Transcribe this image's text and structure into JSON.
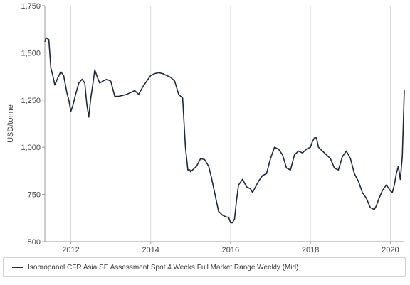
{
  "chart_data": {
    "type": "line",
    "ylabel": "USD/tonne",
    "xlabel": "",
    "ylim": [
      500,
      1750
    ],
    "xlim": [
      2011.35,
      2020.35
    ],
    "y_ticks": [
      500,
      750,
      1000,
      1250,
      1500,
      1750
    ],
    "y_tick_labels": [
      "500",
      "750",
      "1,000",
      "1,250",
      "1,500",
      "1,750"
    ],
    "x_ticks": [
      2012,
      2014,
      2016,
      2018,
      2020
    ],
    "x_tick_labels": [
      "2012",
      "2014",
      "2016",
      "2018",
      "2020"
    ],
    "grid": "vertical",
    "legend_position": "bottom",
    "series": [
      {
        "name": "Isopropanol CFR Asia SE Assessment Spot 4 Weeks Full Market Range Weekly (Mid)",
        "color": "#1c2a3a",
        "x": [
          2011.35,
          2011.38,
          2011.45,
          2011.5,
          2011.55,
          2011.6,
          2011.68,
          2011.75,
          2011.82,
          2011.9,
          2011.95,
          2012.0,
          2012.05,
          2012.12,
          2012.2,
          2012.28,
          2012.35,
          2012.4,
          2012.45,
          2012.5,
          2012.55,
          2012.6,
          2012.65,
          2012.72,
          2012.8,
          2012.9,
          2013.0,
          2013.1,
          2013.2,
          2013.3,
          2013.4,
          2013.5,
          2013.6,
          2013.7,
          2013.8,
          2013.9,
          2014.0,
          2014.1,
          2014.2,
          2014.3,
          2014.4,
          2014.5,
          2014.6,
          2014.7,
          2014.8,
          2014.87,
          2014.93,
          2014.98,
          2015.0,
          2015.05,
          2015.15,
          2015.25,
          2015.35,
          2015.45,
          2015.52,
          2015.6,
          2015.7,
          2015.8,
          2015.9,
          2015.95,
          2016.0,
          2016.05,
          2016.1,
          2016.15,
          2016.2,
          2016.3,
          2016.4,
          2016.5,
          2016.55,
          2016.6,
          2016.7,
          2016.8,
          2016.9,
          2017.0,
          2017.1,
          2017.2,
          2017.3,
          2017.4,
          2017.5,
          2017.6,
          2017.7,
          2017.8,
          2017.9,
          2018.0,
          2018.05,
          2018.1,
          2018.15,
          2018.2,
          2018.3,
          2018.4,
          2018.5,
          2018.6,
          2018.7,
          2018.8,
          2018.9,
          2019.0,
          2019.1,
          2019.2,
          2019.3,
          2019.4,
          2019.5,
          2019.6,
          2019.65,
          2019.7,
          2019.8,
          2019.9,
          2020.0,
          2020.05,
          2020.1,
          2020.15,
          2020.2,
          2020.25,
          2020.3,
          2020.35
        ],
        "values": [
          1560,
          1580,
          1570,
          1420,
          1380,
          1330,
          1370,
          1400,
          1380,
          1290,
          1250,
          1190,
          1220,
          1280,
          1340,
          1360,
          1340,
          1230,
          1160,
          1260,
          1330,
          1410,
          1380,
          1340,
          1350,
          1360,
          1350,
          1270,
          1270,
          1275,
          1280,
          1290,
          1300,
          1280,
          1320,
          1350,
          1380,
          1390,
          1395,
          1390,
          1380,
          1370,
          1350,
          1280,
          1260,
          1000,
          880,
          880,
          870,
          880,
          900,
          940,
          935,
          900,
          840,
          760,
          660,
          640,
          630,
          630,
          600,
          600,
          620,
          720,
          800,
          830,
          790,
          780,
          760,
          780,
          820,
          850,
          860,
          940,
          1000,
          990,
          960,
          890,
          880,
          960,
          980,
          970,
          990,
          1000,
          1030,
          1050,
          1050,
          1000,
          980,
          960,
          940,
          890,
          880,
          950,
          980,
          940,
          860,
          820,
          760,
          730,
          680,
          670,
          690,
          720,
          770,
          800,
          770,
          760,
          800,
          860,
          900,
          830,
          950,
          1300
        ]
      }
    ]
  }
}
